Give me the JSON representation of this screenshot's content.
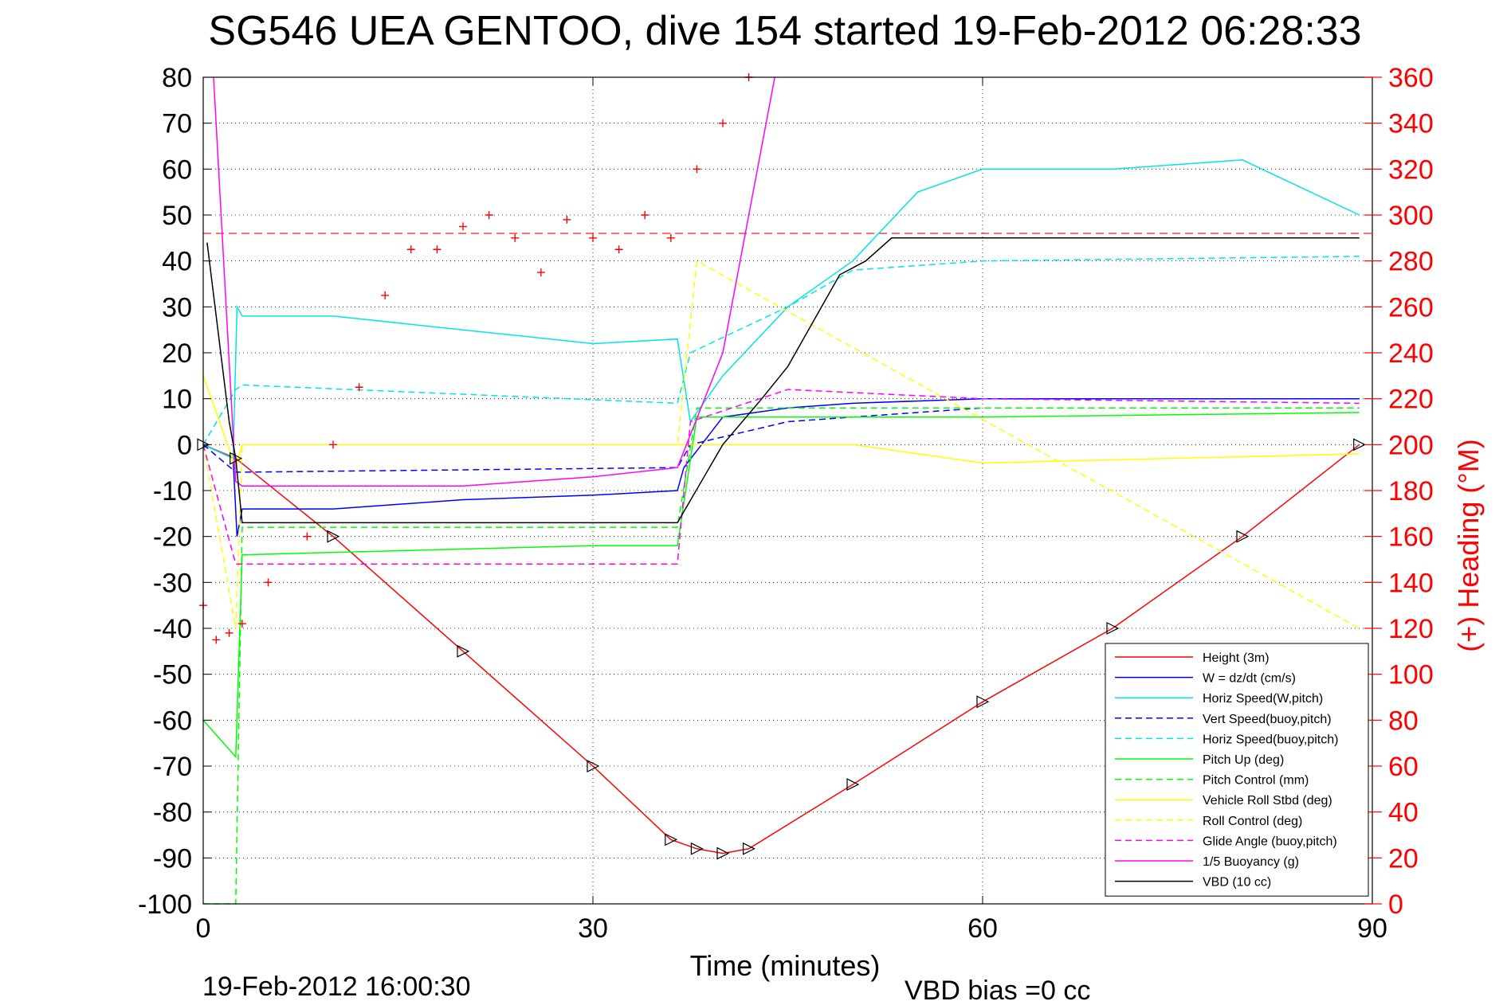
{
  "chart_data": {
    "type": "line",
    "title": "SG546 UEA GENTOO, dive 154 started 19-Feb-2012 06:28:33",
    "xlabel": "Time (minutes)",
    "ylabel": "",
    "y2label": "(+) Heading (°M)",
    "footer_left": "19-Feb-2012 16:00:30",
    "footer_right": "VBD bias =0 cc",
    "xlim": [
      0,
      90
    ],
    "ylim": [
      -100,
      80
    ],
    "y2lim": [
      0,
      360
    ],
    "grid": true,
    "legend_position": "bottom-right",
    "x_ticks": [
      "0",
      "30",
      "60",
      "90"
    ],
    "y_ticks": [
      "80",
      "70",
      "60",
      "50",
      "40",
      "30",
      "20",
      "10",
      "0",
      "-10",
      "-20",
      "-30",
      "-40",
      "-50",
      "-60",
      "-70",
      "-80",
      "-90",
      "-100"
    ],
    "y2_ticks": [
      "360",
      "340",
      "320",
      "300",
      "280",
      "260",
      "240",
      "220",
      "200",
      "180",
      "160",
      "140",
      "120",
      "100",
      "80",
      "60",
      "40",
      "20",
      "0"
    ],
    "reference_heading": 292,
    "series": [
      {
        "name": "Height (3m)",
        "color": "#ff0000",
        "style": "solid",
        "x": [
          0,
          2.5,
          10,
          20,
          30,
          36,
          38,
          40,
          42,
          50,
          60,
          70,
          80,
          89
        ],
        "y": [
          0,
          -3,
          -20,
          -45,
          -70,
          -86,
          -88,
          -89,
          -88,
          -74,
          -56,
          -40,
          -20,
          0
        ]
      },
      {
        "name": "W = dz/dt (cm/s)",
        "color": "#0000ff",
        "style": "solid",
        "x": [
          0,
          2.3,
          2.6,
          3,
          10,
          20,
          30,
          36.5,
          37,
          40,
          45,
          50,
          60,
          70,
          80,
          89
        ],
        "y": [
          0,
          -3,
          -20,
          -14,
          -14,
          -12,
          -11,
          -10,
          -5,
          6,
          8,
          9,
          10,
          10,
          10,
          10
        ]
      },
      {
        "name": "Horiz Speed(W,pitch)",
        "color": "#00e5e5",
        "style": "solid",
        "x": [
          0,
          2.3,
          2.6,
          3,
          10,
          20,
          30,
          36.5,
          37.5,
          40,
          45,
          50,
          55,
          60,
          70,
          80,
          89
        ],
        "y": [
          0,
          -3,
          30,
          28,
          28,
          25,
          22,
          23,
          5,
          15,
          30,
          40,
          55,
          60,
          60,
          62,
          50
        ]
      },
      {
        "name": "Vert Speed(buoy,pitch)",
        "color": "#0000ff",
        "style": "dashed",
        "x": [
          0,
          2.5,
          3,
          36.5,
          37.5,
          45,
          60,
          89
        ],
        "y": [
          0,
          -6,
          -6,
          -5,
          0,
          5,
          8,
          8
        ]
      },
      {
        "name": "Horiz Speed(buoy,pitch)",
        "color": "#00e5e5",
        "style": "dashed",
        "x": [
          0,
          2.5,
          3,
          36.5,
          37.5,
          45,
          50,
          60,
          89
        ],
        "y": [
          0,
          12,
          13,
          9,
          20,
          30,
          38,
          40,
          41
        ]
      },
      {
        "name": "Pitch Up (deg)",
        "color": "#00ff00",
        "style": "solid",
        "x": [
          0,
          2.5,
          3,
          30,
          36.5,
          38,
          45,
          60,
          89
        ],
        "y": [
          -60,
          -68,
          -24,
          -22,
          -22,
          6,
          6,
          6,
          7
        ]
      },
      {
        "name": "Pitch Control (mm)",
        "color": "#00ff00",
        "style": "dashed",
        "x": [
          0,
          2.5,
          3,
          36.5,
          38,
          89
        ],
        "y": [
          -100,
          -100,
          -18,
          -18,
          8,
          8
        ]
      },
      {
        "name": "Vehicle Roll Stbd (deg)",
        "color": "#ffff00",
        "style": "solid",
        "x": [
          0,
          2.5,
          3,
          20,
          36.5,
          38,
          50,
          60,
          89
        ],
        "y": [
          15,
          -5,
          0,
          0,
          0,
          0,
          0,
          -4,
          -2
        ]
      },
      {
        "name": "Roll Control (deg)",
        "color": "#ffff00",
        "style": "dashed",
        "x": [
          0,
          2.5,
          3,
          36.5,
          38,
          89
        ],
        "y": [
          0,
          -40,
          0,
          0,
          40,
          -40
        ]
      },
      {
        "name": "Glide Angle (buoy,pitch)",
        "color": "#ff00ff",
        "style": "dashed",
        "x": [
          0,
          2.5,
          3,
          36.5,
          37.5,
          45,
          60,
          89
        ],
        "y": [
          0,
          -26,
          -26,
          -26,
          5,
          12,
          10,
          9
        ]
      },
      {
        "name": "1/5 Buoyancy (g)",
        "color": "#ff00ff",
        "style": "solid",
        "x": [
          0.8,
          2.5,
          3,
          20,
          30,
          36.5,
          40,
          44
        ],
        "y": [
          80,
          -8,
          -9,
          -9,
          -7,
          -5,
          20,
          80
        ]
      },
      {
        "name": "VBD (10 cc)",
        "color": "#000000",
        "style": "solid",
        "x": [
          0.3,
          2,
          2.5,
          3,
          36.5,
          40,
          43,
          45,
          47,
          49,
          51,
          53,
          60,
          89
        ],
        "y": [
          44,
          5,
          -3,
          -17,
          -17,
          0,
          10,
          17,
          27,
          37,
          40,
          45,
          45,
          45
        ]
      }
    ],
    "heading_series": {
      "name": "(+) Heading",
      "marker": "+",
      "color": "#ff0000",
      "x": [
        0,
        1,
        2,
        3,
        5,
        8,
        10,
        12,
        14,
        16,
        18,
        20,
        22,
        24,
        26,
        28,
        30,
        32,
        34,
        36,
        38,
        40,
        42
      ],
      "y": [
        130,
        115,
        118,
        122,
        140,
        160,
        200,
        225,
        265,
        285,
        285,
        295,
        300,
        290,
        275,
        298,
        290,
        285,
        300,
        290,
        320,
        340,
        360
      ]
    }
  }
}
